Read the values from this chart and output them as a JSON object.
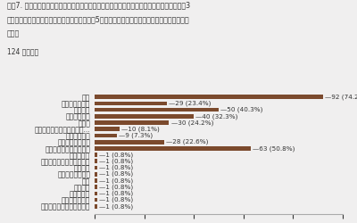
{
  "title_line1": "質問7. 学生が進学先を決める（出願する）に当たって、大きな要因になっていると思われる3",
  "title_line2": "つの選択肢を下記から選んでください。（質問5）で選択した国籍の学生を想定してご回答くだ",
  "title_line3": "さい。",
  "subtitle": "124 件の回答",
  "categories": [
    "学費",
    "自宅からの距離",
    "専攻分野",
    "知名度の高さ",
    "就職率",
    "合同説明会（進学イベント...",
    "学校内説明会",
    "日本語教師の推薦",
    "知人や先輩からの口コミ",
    "校長の推薦",
    "母国での知名度（早稲田）",
    "ビザ更新",
    "学生の日本語能力",
    "成績",
    "親の意向",
    "日本語能力",
    "大学ランキング",
    "奨学型奨学金、生活指導、"
  ],
  "values": [
    92,
    29,
    50,
    40,
    30,
    10,
    9,
    28,
    63,
    1,
    1,
    1,
    1,
    1,
    1,
    1,
    1,
    1
  ],
  "labels": [
    "92 (74.2%)",
    "29 (23.4%)",
    "50 (40.3%)",
    "40 (32.3%)",
    "30 (24.2%)",
    "10 (8.1%)",
    "9 (7.3%)",
    "28 (22.6%)",
    "63 (50.8%)",
    "1 (0.8%)",
    "1 (0.8%)",
    "1 (0.8%)",
    "1 (0.8%)",
    "1 (0.8%)",
    "1 (0.8%)",
    "1 (0.8%)",
    "1 (0.8%)",
    "1 (0.8%)"
  ],
  "bar_color": "#7B4A2D",
  "bg_color": "#F0EFEF",
  "text_color": "#333333",
  "xlim": [
    0,
    100
  ],
  "xticks": [
    0,
    20,
    40,
    60,
    80,
    100
  ],
  "title_fontsize": 5.8,
  "subtitle_fontsize": 5.5,
  "label_fontsize": 5.5,
  "bar_label_fontsize": 5.2,
  "tick_fontsize": 5.5
}
